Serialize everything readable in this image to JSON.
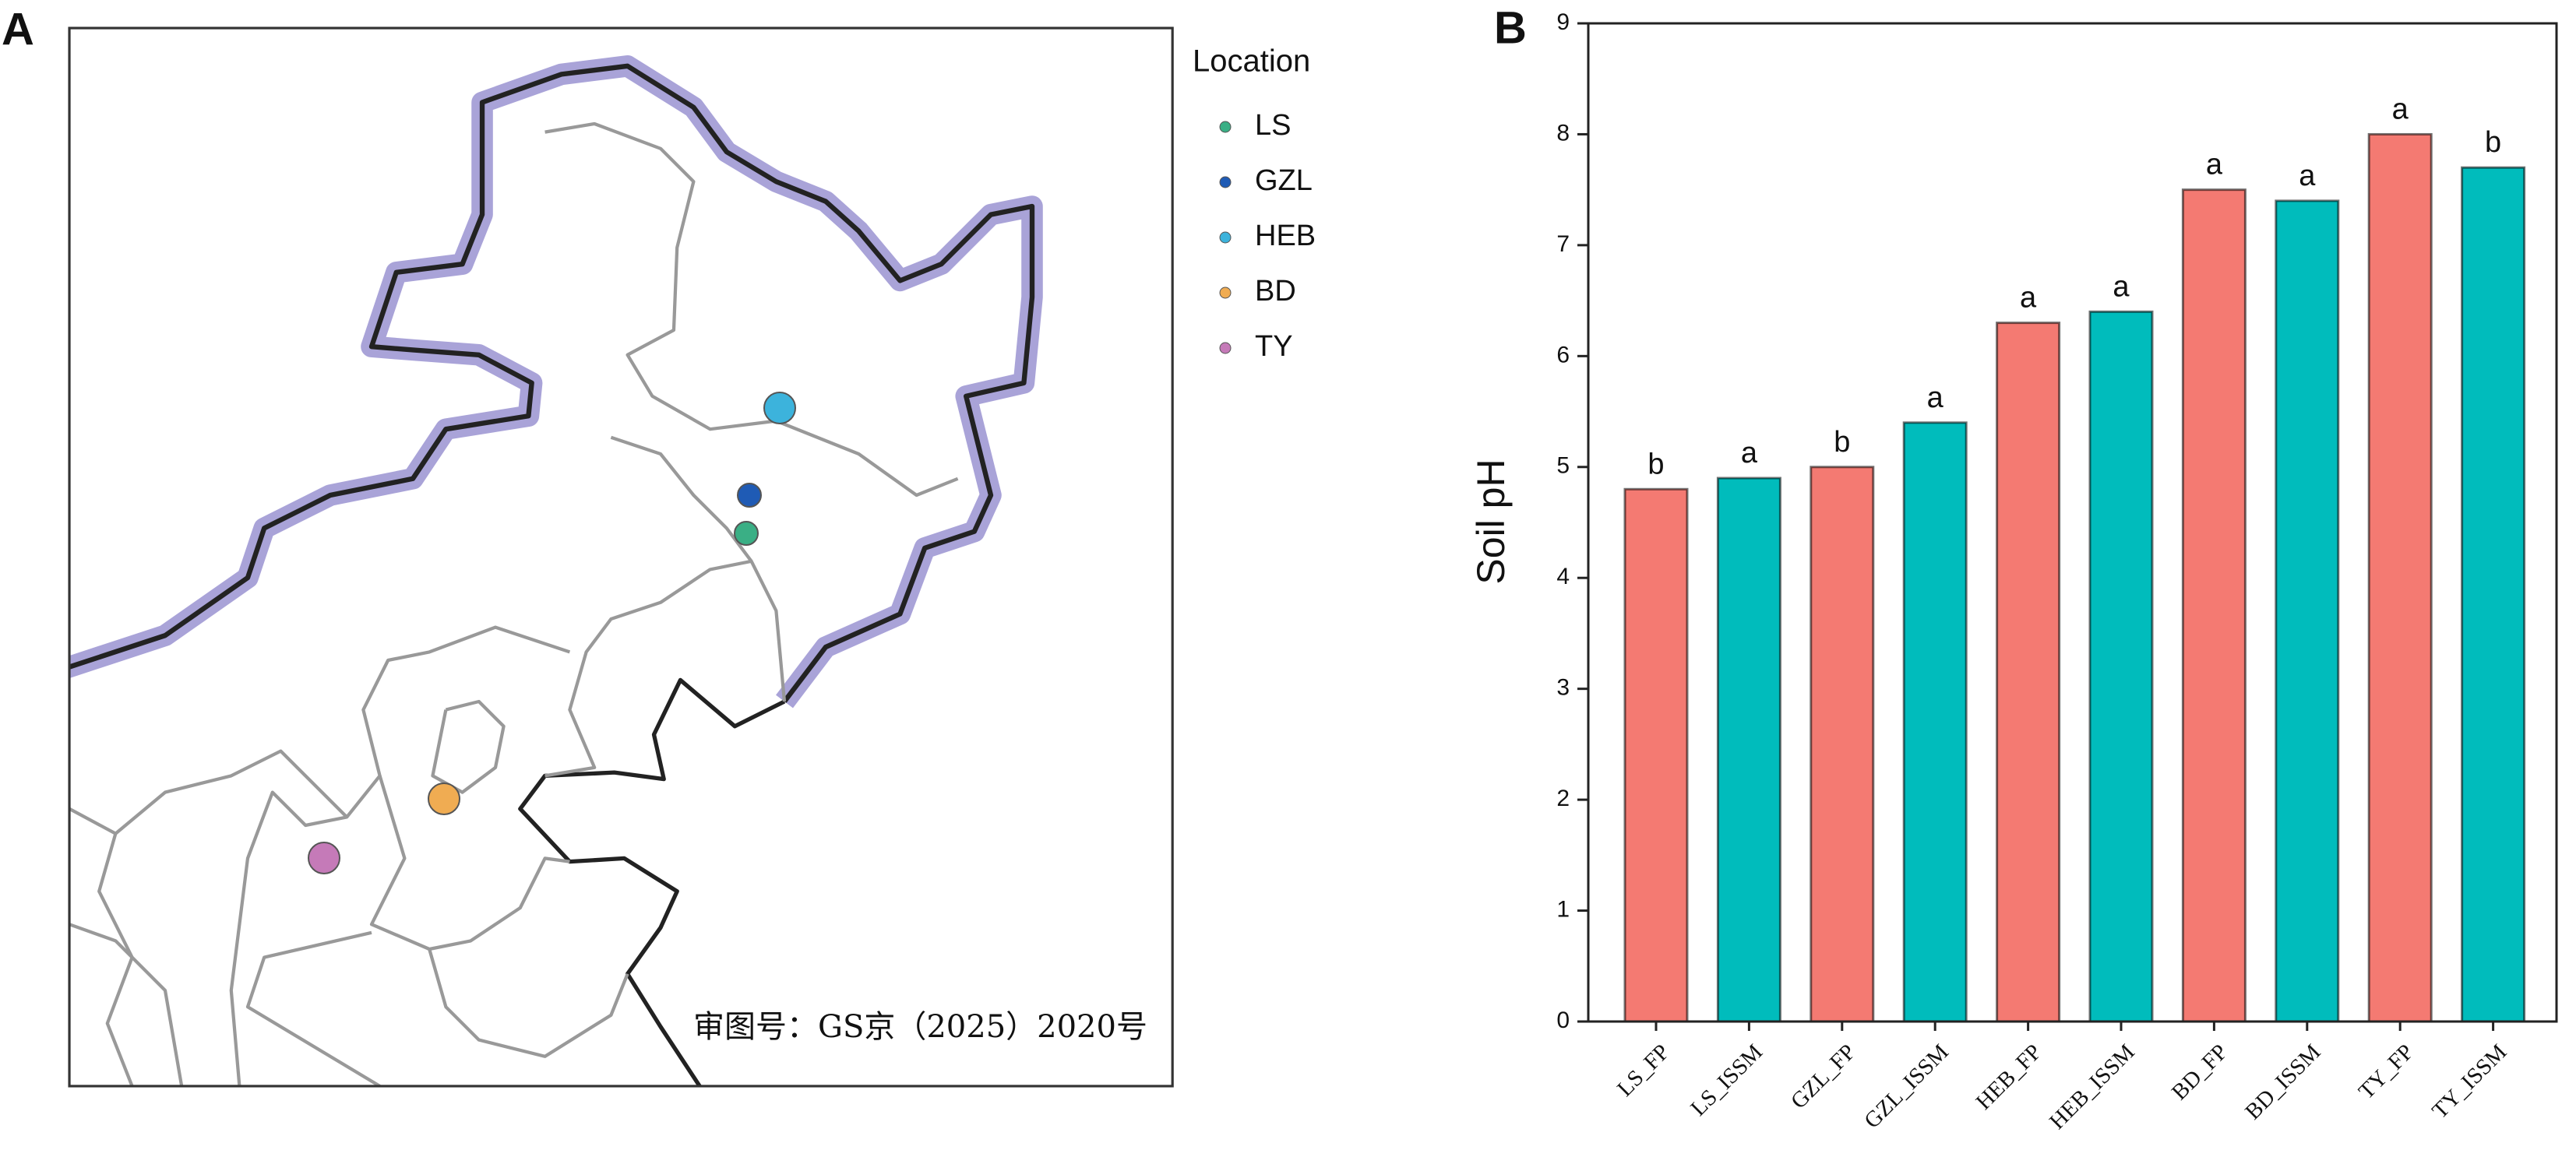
{
  "panel_a": {
    "label": "A",
    "legend_title": "Location",
    "legend": [
      {
        "name": "LS",
        "color": "#3aaf85"
      },
      {
        "name": "GZL",
        "color": "#1f5bb5"
      },
      {
        "name": "HEB",
        "color": "#3cb3dc"
      },
      {
        "name": "BD",
        "color": "#f0ac52"
      },
      {
        "name": "TY",
        "color": "#c57ab8"
      }
    ],
    "note": "审图号：GS京（2025）2020号"
  },
  "chart_data": {
    "type": "bar",
    "panel_label": "B",
    "ylabel": "Soil pH",
    "categories": [
      "LS_FP",
      "LS_ISSM",
      "GZL_FP",
      "GZL_ISSM",
      "HEB_FP",
      "HEB_ISSM",
      "BD_FP",
      "BD_ISSM",
      "TY_FP",
      "TY_ISSM"
    ],
    "values": [
      4.8,
      4.9,
      5.0,
      5.4,
      6.3,
      6.4,
      7.5,
      7.4,
      8.0,
      7.7
    ],
    "annotations": [
      "b",
      "a",
      "b",
      "a",
      "a",
      "a",
      "a",
      "a",
      "a",
      "b"
    ],
    "colors": [
      "#f47a72",
      "#00bcbc",
      "#f47a72",
      "#00bcbc",
      "#f47a72",
      "#00bcbc",
      "#f47a72",
      "#00bcbc",
      "#f47a72",
      "#00bcbc"
    ],
    "ylim": [
      0,
      9
    ],
    "yticks": [
      0,
      1,
      2,
      3,
      4,
      5,
      6,
      7,
      8,
      9
    ]
  }
}
